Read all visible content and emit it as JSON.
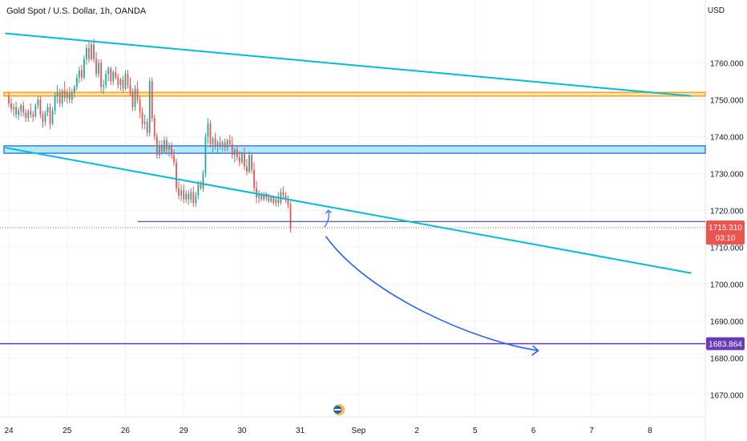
{
  "header": {
    "symbol_title": "Gold Spot / U.S. Dollar, 1h, OANDA",
    "currency": "USD"
  },
  "colors": {
    "up_candle": "#26a69a",
    "down_candle": "#ef5350",
    "trendline": "#00bcd4",
    "resistance_zone_border": "#ff9800",
    "resistance_zone_fill": "#ffe0b2",
    "support_zone_border": "#2962ff",
    "support_zone_fill": "#b2ebf2",
    "projection_arrow": "#2962ff",
    "target_line": "#673ab7",
    "horizontal_level": "#1e3a8a",
    "current_price_badge": "#ef5350",
    "target_badge": "#673ab7"
  },
  "chart_data": {
    "type": "candlestick",
    "title": "Gold Spot / U.S. Dollar, 1h, OANDA",
    "instrument": "XAU/USD",
    "timeframe": "1h",
    "currency": "USD",
    "ylim": [
      1664,
      1774
    ],
    "y_ticks": [
      1670,
      1680,
      1690,
      1700,
      1710,
      1720,
      1730,
      1740,
      1750,
      1760
    ],
    "y_tick_labels": [
      "1670.000",
      "1680.000",
      "1690.000",
      "1700.000",
      "1710.000",
      "1720.000",
      "1730.000",
      "1740.000",
      "1750.000",
      "1760.000"
    ],
    "x_tick_labels": [
      "24",
      "25",
      "26",
      "29",
      "30",
      "31",
      "Sep",
      "2",
      "5",
      "6",
      "7",
      "8"
    ],
    "x_tick_positions": [
      0,
      24,
      48,
      72,
      96,
      120,
      144,
      168,
      192,
      216,
      240,
      264
    ],
    "last_index": 130,
    "candles": [
      [
        1751.0,
        1752.0,
        1748.0,
        1749.0
      ],
      [
        1749.0,
        1750.5,
        1746.5,
        1747.5
      ],
      [
        1747.5,
        1749.0,
        1745.5,
        1748.0
      ],
      [
        1748.0,
        1749.5,
        1745.0,
        1746.0
      ],
      [
        1746.0,
        1748.0,
        1744.5,
        1747.0
      ],
      [
        1747.0,
        1749.0,
        1745.5,
        1748.5
      ],
      [
        1748.5,
        1749.5,
        1745.5,
        1746.5
      ],
      [
        1746.5,
        1747.5,
        1744.0,
        1745.0
      ],
      [
        1745.0,
        1747.5,
        1744.0,
        1747.0
      ],
      [
        1747.0,
        1749.0,
        1745.0,
        1746.0
      ],
      [
        1746.0,
        1747.0,
        1744.0,
        1745.5
      ],
      [
        1745.5,
        1749.0,
        1745.0,
        1748.5
      ],
      [
        1748.5,
        1751.0,
        1747.5,
        1750.0
      ],
      [
        1750.0,
        1751.0,
        1745.0,
        1746.0
      ],
      [
        1746.0,
        1747.0,
        1742.5,
        1744.0
      ],
      [
        1744.0,
        1747.0,
        1743.0,
        1746.5
      ],
      [
        1746.5,
        1749.0,
        1745.5,
        1748.0
      ],
      [
        1748.0,
        1749.0,
        1742.0,
        1743.5
      ],
      [
        1743.5,
        1748.0,
        1743.0,
        1747.0
      ],
      [
        1747.0,
        1752.0,
        1746.0,
        1751.0
      ],
      [
        1751.0,
        1754.0,
        1749.0,
        1752.0
      ],
      [
        1752.0,
        1753.0,
        1748.0,
        1749.0
      ],
      [
        1749.0,
        1753.0,
        1748.0,
        1752.5
      ],
      [
        1752.5,
        1755.0,
        1749.5,
        1750.5
      ],
      [
        1750.5,
        1753.0,
        1749.0,
        1752.0
      ],
      [
        1752.0,
        1753.5,
        1749.0,
        1750.0
      ],
      [
        1750.0,
        1753.0,
        1749.0,
        1752.0
      ],
      [
        1752.0,
        1754.0,
        1750.5,
        1753.5
      ],
      [
        1753.5,
        1757.0,
        1752.5,
        1756.0
      ],
      [
        1756.0,
        1759.0,
        1754.5,
        1758.0
      ],
      [
        1758.0,
        1759.5,
        1755.0,
        1756.0
      ],
      [
        1756.0,
        1762.0,
        1755.5,
        1761.0
      ],
      [
        1761.0,
        1765.0,
        1759.5,
        1764.0
      ],
      [
        1764.0,
        1766.0,
        1760.0,
        1761.0
      ],
      [
        1761.0,
        1765.5,
        1760.5,
        1765.0
      ],
      [
        1765.0,
        1766.5,
        1760.0,
        1761.0
      ],
      [
        1761.0,
        1763.0,
        1756.0,
        1757.0
      ],
      [
        1757.0,
        1761.0,
        1756.0,
        1760.0
      ],
      [
        1760.0,
        1761.0,
        1752.0,
        1753.5
      ],
      [
        1753.5,
        1755.5,
        1751.5,
        1754.0
      ],
      [
        1754.0,
        1758.0,
        1753.0,
        1757.0
      ],
      [
        1757.0,
        1759.0,
        1755.0,
        1758.5
      ],
      [
        1758.5,
        1759.0,
        1754.0,
        1755.0
      ],
      [
        1755.0,
        1758.0,
        1754.0,
        1757.5
      ],
      [
        1757.5,
        1759.0,
        1755.5,
        1756.0
      ],
      [
        1756.0,
        1757.0,
        1753.0,
        1754.0
      ],
      [
        1754.0,
        1756.0,
        1752.5,
        1755.5
      ],
      [
        1755.5,
        1756.5,
        1752.0,
        1753.0
      ],
      [
        1753.0,
        1758.0,
        1752.5,
        1757.0
      ],
      [
        1757.0,
        1758.0,
        1753.0,
        1754.0
      ],
      [
        1754.0,
        1756.0,
        1751.0,
        1752.0
      ],
      [
        1752.0,
        1753.0,
        1747.0,
        1748.0
      ],
      [
        1748.0,
        1754.0,
        1747.0,
        1753.0
      ],
      [
        1753.0,
        1755.0,
        1749.0,
        1750.0
      ],
      [
        1750.0,
        1751.0,
        1745.0,
        1746.5
      ],
      [
        1746.5,
        1748.0,
        1742.0,
        1743.5
      ],
      [
        1743.5,
        1746.0,
        1742.0,
        1744.0
      ],
      [
        1744.0,
        1745.0,
        1740.0,
        1741.0
      ],
      [
        1741.0,
        1756.0,
        1740.0,
        1755.0
      ],
      [
        1755.0,
        1756.0,
        1744.0,
        1745.0
      ],
      [
        1745.0,
        1746.0,
        1739.0,
        1740.0
      ],
      [
        1740.0,
        1741.0,
        1734.0,
        1735.0
      ],
      [
        1735.0,
        1739.0,
        1734.0,
        1737.5
      ],
      [
        1737.5,
        1739.0,
        1735.0,
        1736.0
      ],
      [
        1736.0,
        1740.0,
        1735.5,
        1739.0
      ],
      [
        1739.0,
        1740.0,
        1735.0,
        1736.5
      ],
      [
        1736.5,
        1738.5,
        1734.5,
        1737.5
      ],
      [
        1737.5,
        1738.5,
        1734.0,
        1735.0
      ],
      [
        1735.0,
        1736.5,
        1732.0,
        1733.0
      ],
      [
        1733.0,
        1734.0,
        1725.0,
        1726.0
      ],
      [
        1726.0,
        1728.0,
        1723.0,
        1724.0
      ],
      [
        1724.0,
        1727.0,
        1722.5,
        1725.5
      ],
      [
        1725.5,
        1727.0,
        1722.0,
        1723.0
      ],
      [
        1723.0,
        1725.5,
        1722.0,
        1724.5
      ],
      [
        1724.5,
        1725.5,
        1721.5,
        1723.0
      ],
      [
        1723.0,
        1726.0,
        1722.0,
        1725.0
      ],
      [
        1725.0,
        1726.5,
        1721.0,
        1722.0
      ],
      [
        1722.0,
        1725.0,
        1721.0,
        1724.0
      ],
      [
        1724.0,
        1728.0,
        1723.0,
        1727.0
      ],
      [
        1727.0,
        1728.0,
        1725.5,
        1726.0
      ],
      [
        1726.0,
        1731.0,
        1725.0,
        1730.0
      ],
      [
        1730.0,
        1741.0,
        1729.0,
        1740.0
      ],
      [
        1740.0,
        1745.0,
        1738.0,
        1743.5
      ],
      [
        1743.5,
        1744.5,
        1737.0,
        1738.0
      ],
      [
        1738.0,
        1740.0,
        1735.5,
        1739.5
      ],
      [
        1739.5,
        1741.0,
        1736.5,
        1737.5
      ],
      [
        1737.5,
        1739.0,
        1735.5,
        1738.5
      ],
      [
        1738.5,
        1740.0,
        1736.5,
        1737.5
      ],
      [
        1737.5,
        1739.0,
        1736.0,
        1738.5
      ],
      [
        1738.5,
        1739.5,
        1736.0,
        1737.0
      ],
      [
        1737.0,
        1739.5,
        1736.0,
        1739.0
      ],
      [
        1739.0,
        1740.5,
        1737.5,
        1738.0
      ],
      [
        1738.0,
        1740.0,
        1734.0,
        1735.0
      ],
      [
        1735.0,
        1737.0,
        1733.0,
        1736.5
      ],
      [
        1736.5,
        1737.5,
        1733.5,
        1734.5
      ],
      [
        1734.5,
        1736.0,
        1732.0,
        1733.0
      ],
      [
        1733.0,
        1736.0,
        1732.5,
        1735.5
      ],
      [
        1735.5,
        1737.0,
        1731.0,
        1732.0
      ],
      [
        1732.0,
        1734.0,
        1729.5,
        1730.5
      ],
      [
        1730.5,
        1736.0,
        1730.0,
        1735.0
      ],
      [
        1735.0,
        1735.5,
        1730.0,
        1731.0
      ],
      [
        1731.0,
        1733.0,
        1725.0,
        1726.0
      ],
      [
        1726.0,
        1728.0,
        1722.0,
        1723.5
      ],
      [
        1723.5,
        1725.5,
        1722.0,
        1724.5
      ],
      [
        1724.5,
        1725.0,
        1722.5,
        1723.0
      ],
      [
        1723.0,
        1725.0,
        1722.5,
        1724.5
      ],
      [
        1724.5,
        1725.0,
        1722.5,
        1723.5
      ],
      [
        1723.5,
        1724.5,
        1722.0,
        1722.5
      ],
      [
        1722.5,
        1724.0,
        1722.0,
        1723.5
      ],
      [
        1723.5,
        1724.0,
        1721.5,
        1722.0
      ],
      [
        1722.0,
        1723.5,
        1721.0,
        1723.0
      ],
      [
        1723.0,
        1725.0,
        1721.0,
        1722.0
      ],
      [
        1722.0,
        1726.0,
        1721.5,
        1725.0
      ],
      [
        1725.0,
        1726.5,
        1723.0,
        1724.0
      ],
      [
        1724.0,
        1725.0,
        1722.0,
        1723.0
      ],
      [
        1723.0,
        1724.0,
        1720.5,
        1721.5
      ],
      [
        1721.5,
        1722.5,
        1714.0,
        1715.31
      ]
    ]
  },
  "overlays": {
    "upper_trendline": {
      "from": [
        -1.5,
        1768.0
      ],
      "to": [
        281,
        1751.0
      ]
    },
    "lower_trendline": {
      "from": [
        -1.5,
        1737.0
      ],
      "to": [
        281,
        1703.0
      ]
    },
    "resistance_zone": {
      "low": 1751.0,
      "high": 1752.0,
      "from_index": -2
    },
    "support_zone": {
      "low": 1735.5,
      "high": 1737.5,
      "from_index": -2
    },
    "horizontal_level": {
      "price": 1717.0,
      "from_index": 53
    },
    "current_price_line": {
      "price": 1715.31
    },
    "target_line": {
      "price": 1683.864
    },
    "projection_curve": [
      [
        130.5,
        1713.0
      ],
      [
        148,
        1697.0
      ],
      [
        192,
        1684.5
      ],
      [
        218,
        1682.0
      ]
    ],
    "bounce_arrow": [
      [
        130,
        1715.5
      ],
      [
        131.5,
        1720.0
      ]
    ]
  },
  "price_labels": {
    "current_price": "1715.310",
    "countdown": "03:10",
    "target_price": "1683.864"
  }
}
